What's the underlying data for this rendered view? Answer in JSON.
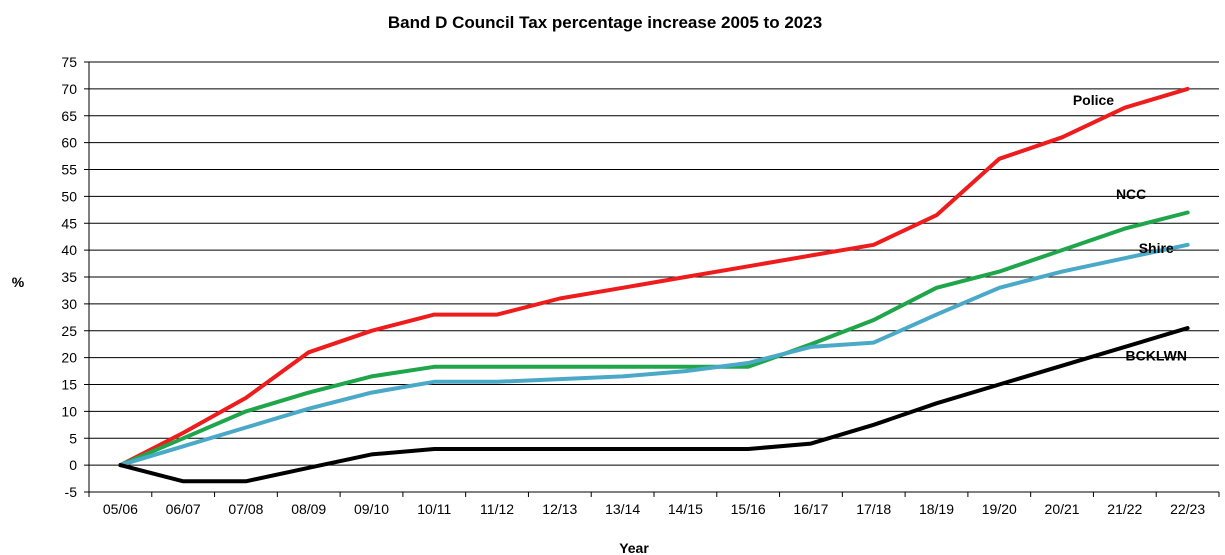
{
  "chart_data": {
    "type": "line",
    "title": "Band D Council Tax percentage increase 2005 to 2023",
    "xlabel": "Year",
    "ylabel": "%",
    "ylim": [
      -5,
      75
    ],
    "ytick_step": 5,
    "grid": "horizontal",
    "categories": [
      "05/06",
      "06/07",
      "07/08",
      "08/09",
      "09/10",
      "10/11",
      "11/12",
      "12/13",
      "13/14",
      "14/15",
      "15/16",
      "16/17",
      "17/18",
      "18/19",
      "19/20",
      "20/21",
      "21/22",
      "22/23"
    ],
    "series": [
      {
        "name": "Police",
        "color": "#ee1c1c",
        "values": [
          0,
          6,
          12.5,
          21,
          25,
          28,
          28,
          31,
          33,
          35,
          37,
          39,
          41,
          46.5,
          57,
          61,
          66.5,
          70
        ]
      },
      {
        "name": "NCC",
        "color": "#1fa64a",
        "values": [
          0,
          5,
          10,
          13.5,
          16.5,
          18.3,
          18.3,
          18.3,
          18.3,
          18.3,
          18.3,
          22.5,
          27,
          33,
          36,
          40,
          44,
          47
        ]
      },
      {
        "name": "Shire",
        "color": "#4ba9c8",
        "values": [
          0,
          3.5,
          7,
          10.5,
          13.5,
          15.5,
          15.5,
          16,
          16.5,
          17.5,
          19,
          22,
          22.8,
          28,
          33,
          36,
          38.5,
          41
        ]
      },
      {
        "name": "BCKLWN",
        "color": "#000000",
        "values": [
          0,
          -3,
          -3,
          -0.5,
          2,
          3,
          3,
          3,
          3,
          3,
          3,
          4,
          7.5,
          11.5,
          15,
          18.5,
          22,
          25.5
        ]
      }
    ]
  }
}
